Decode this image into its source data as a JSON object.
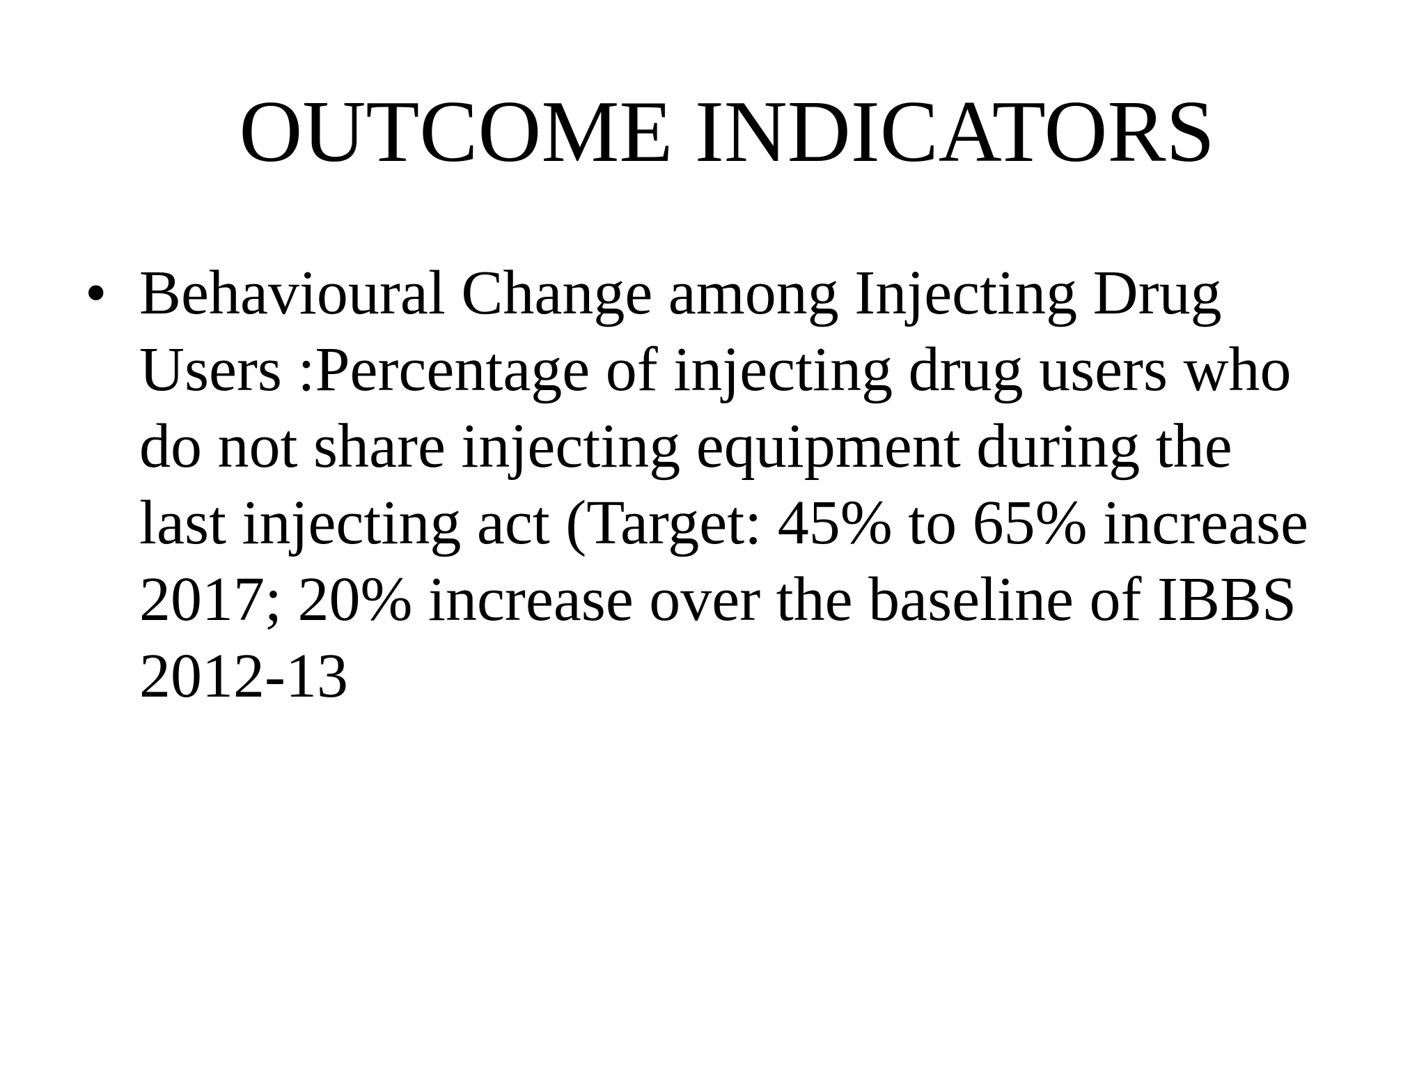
{
  "slide": {
    "title": "OUTCOME INDICATORS",
    "colors": {
      "background": "#ffffff",
      "text": "#000000"
    },
    "bullet": {
      "marker": "•",
      "full_text": "Behavioural Change among Injecting Drug Users :Percentage of injecting drug users who do not share injecting equipment during the last injecting act (Target: 45% to 65% increase 2017; 20% increase over the baseline of IBBS 2012-13",
      "lines": [
        "Behavioural Change among Injecting Drug",
        "Users :Percentage of injecting drug users who",
        "do not share injecting equipment during the",
        "last injecting act (Target: 45% to 65% increase",
        "2017; 20% increase over the baseline of IBBS",
        "2012-13"
      ]
    }
  }
}
